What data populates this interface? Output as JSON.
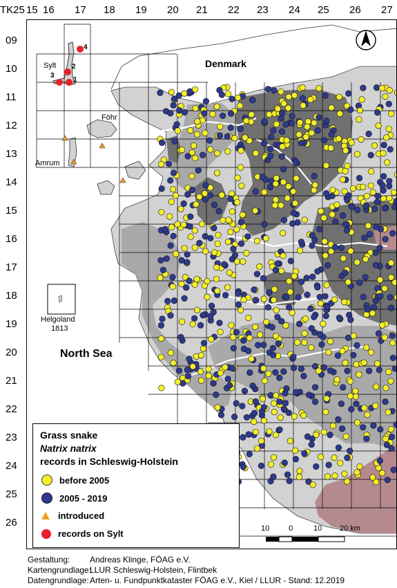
{
  "grid": {
    "corner_label": "TK25",
    "columns": [
      "15",
      "16",
      "17",
      "18",
      "19",
      "20",
      "21",
      "22",
      "23",
      "24",
      "25",
      "26",
      "27"
    ],
    "rows": [
      "09",
      "10",
      "11",
      "12",
      "13",
      "14",
      "15",
      "16",
      "17",
      "18",
      "19",
      "20",
      "21",
      "22",
      "23",
      "24",
      "25",
      "26"
    ]
  },
  "places": {
    "denmark": "Denmark",
    "north_sea": "North Sea",
    "sylt": "Sylt",
    "foehr": "Föhr",
    "amrum": "Amrum",
    "helgoland": "Helgoland",
    "helgoland_sheet": "1813"
  },
  "sylt_records": [
    "1",
    "2",
    "3",
    "4"
  ],
  "legend": {
    "title_1": "Grass snake",
    "title_2": "Natrix natrix",
    "title_3": "records in Schleswig-Holstein",
    "items": [
      {
        "label": "before 2005",
        "color": "#f2ee2a"
      },
      {
        "label": "2005 - 2019",
        "color": "#2e3a8c"
      },
      {
        "label": "introduced",
        "color": "#f2a020"
      },
      {
        "label": "records on Sylt",
        "color": "#e8202a"
      }
    ]
  },
  "scalebar": {
    "labels": [
      "10",
      "0",
      "10",
      "20 km"
    ]
  },
  "north_arrow": "N",
  "credits": [
    {
      "key": "Gestaltung:",
      "value": "Andreas Klinge, FÖAG e.V."
    },
    {
      "key": "Kartengrundlage:",
      "value": "LLUR Schleswig-Holstein, Flintbek"
    },
    {
      "key": "Datengrundlage:",
      "value": "Arten- u. Fundpunktkataster  FÖAG e.V., Kiel / LLUR - Stand: 12.2019"
    }
  ],
  "colors": {
    "land_light": "#d2d2d2",
    "land_mid": "#a9a9a9",
    "land_dark": "#707070",
    "mauve": "#b58a8f",
    "point_old": "#f2ee2a",
    "point_new": "#2e3a8c",
    "sylt": "#e8202a",
    "introduced": "#f2a020"
  }
}
